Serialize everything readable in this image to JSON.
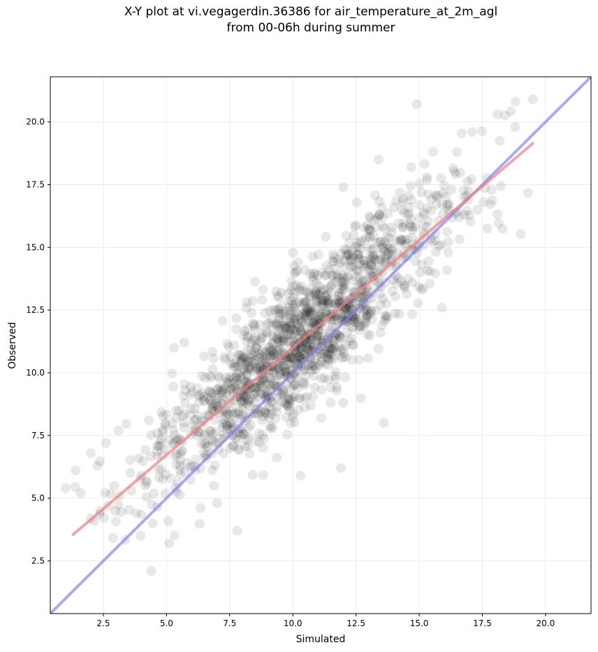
{
  "chart_data": {
    "type": "scatter",
    "title_line1": "X-Y plot at vi.vegagerdin.36386 for air_temperature_at_2m_agl",
    "title_line2": "from 00-06h during summer",
    "xlabel": "Simulated",
    "ylabel": "Observed",
    "xlim": [
      0.4,
      21.8
    ],
    "ylim": [
      0.4,
      21.8
    ],
    "xticks": [
      "2.5",
      "5.0",
      "7.5",
      "10.0",
      "12.5",
      "15.0",
      "17.5",
      "20.0"
    ],
    "yticks": [
      "2.5",
      "5.0",
      "7.5",
      "10.0",
      "12.5",
      "15.0",
      "17.5",
      "20.0"
    ],
    "grid": true,
    "point_color": "#000000",
    "point_alpha": 0.09,
    "regression_line": {
      "color": "#f08080",
      "x": [
        1.3,
        19.5
      ],
      "y": [
        3.55,
        19.15
      ]
    },
    "identity_line": {
      "color": "#7b7bf0",
      "x": [
        0.4,
        21.8
      ],
      "y": [
        0.4,
        21.8
      ]
    },
    "sample": {
      "count": 1500,
      "seed": 36386,
      "x_mean": 10.2,
      "x_sd": 3.0,
      "slope": 0.86,
      "intercept": 2.45,
      "residual_sd": 1.35,
      "x_range": [
        1.2,
        19.6
      ],
      "y_range": [
        2.0,
        21.0
      ]
    },
    "points": [
      {
        "x": 19.5,
        "y": 20.9
      },
      {
        "x": 14.9,
        "y": 20.7
      },
      {
        "x": 18.1,
        "y": 20.3
      },
      {
        "x": 17.1,
        "y": 19.6
      },
      {
        "x": 18.8,
        "y": 19.8
      },
      {
        "x": 12.0,
        "y": 17.4
      },
      {
        "x": 1.0,
        "y": 5.4
      },
      {
        "x": 1.4,
        "y": 6.1
      },
      {
        "x": 1.6,
        "y": 5.2
      },
      {
        "x": 2.0,
        "y": 6.8
      },
      {
        "x": 2.6,
        "y": 7.2
      },
      {
        "x": 3.1,
        "y": 7.7
      },
      {
        "x": 4.3,
        "y": 8.1
      },
      {
        "x": 5.3,
        "y": 11.0
      },
      {
        "x": 5.7,
        "y": 11.2
      },
      {
        "x": 4.4,
        "y": 2.1
      },
      {
        "x": 5.1,
        "y": 3.2
      },
      {
        "x": 7.8,
        "y": 3.7
      },
      {
        "x": 10.3,
        "y": 5.9
      },
      {
        "x": 11.9,
        "y": 6.2
      },
      {
        "x": 13.6,
        "y": 8.0
      },
      {
        "x": 15.9,
        "y": 12.6
      },
      {
        "x": 16.1,
        "y": 14.1
      },
      {
        "x": 17.3,
        "y": 16.5
      },
      {
        "x": 16.5,
        "y": 18.8
      },
      {
        "x": 15.3,
        "y": 17.8
      },
      {
        "x": 13.4,
        "y": 18.5
      },
      {
        "x": 3.8,
        "y": 4.4
      },
      {
        "x": 4.0,
        "y": 5.9
      },
      {
        "x": 7.0,
        "y": 4.8
      }
    ]
  }
}
